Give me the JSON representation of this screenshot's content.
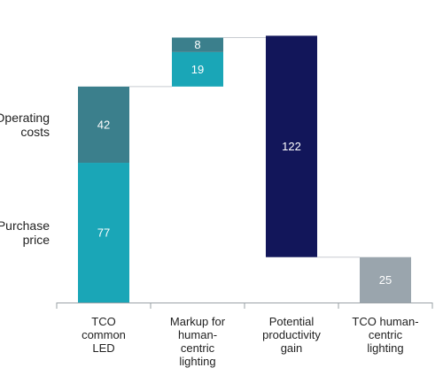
{
  "chart_data": {
    "type": "bar",
    "subtype": "waterfall",
    "ylim": [
      0,
      155
    ],
    "grid": false,
    "categories": [
      [
        "TCO",
        "common",
        "LED"
      ],
      [
        "Markup for",
        "human-",
        "centric",
        "lighting"
      ],
      [
        "Potential",
        "productivity",
        "gain"
      ],
      [
        "TCO human-",
        "centric",
        "lighting"
      ]
    ],
    "side_labels": [
      {
        "lines": [
          "Operating",
          "costs"
        ],
        "segment": "Operating costs"
      },
      {
        "lines": [
          "Purchase",
          "price"
        ],
        "segment": "Purchase price"
      }
    ],
    "bars": [
      {
        "category_index": 0,
        "segments": [
          {
            "name": "Purchase price",
            "start": 0,
            "value": 77,
            "label": "77",
            "color": "#1aa6b7"
          },
          {
            "name": "Operating costs",
            "start": 77,
            "value": 42,
            "label": "42",
            "color": "#3b7f8c"
          }
        ]
      },
      {
        "category_index": 1,
        "segments": [
          {
            "name": "Purchase price",
            "start": 119,
            "value": 19,
            "label": "19",
            "color": "#1aa6b7"
          },
          {
            "name": "Operating costs",
            "start": 138,
            "value": 8,
            "label": "8",
            "color": "#3b7f8c"
          }
        ]
      },
      {
        "category_index": 2,
        "segments": [
          {
            "name": "Potential productivity gain",
            "start": 25,
            "value": 122,
            "label": "122",
            "color": "#12165a"
          }
        ]
      },
      {
        "category_index": 3,
        "segments": [
          {
            "name": "TCO human-centric lighting",
            "start": 0,
            "value": 25,
            "label": "25",
            "color": "#9aa5ad"
          }
        ]
      }
    ],
    "connectors": [
      {
        "from": 0,
        "to": 1,
        "level": 119
      },
      {
        "from": 1,
        "to": 2,
        "level": 146
      },
      {
        "from": 2,
        "to": 3,
        "level": 25
      }
    ]
  }
}
